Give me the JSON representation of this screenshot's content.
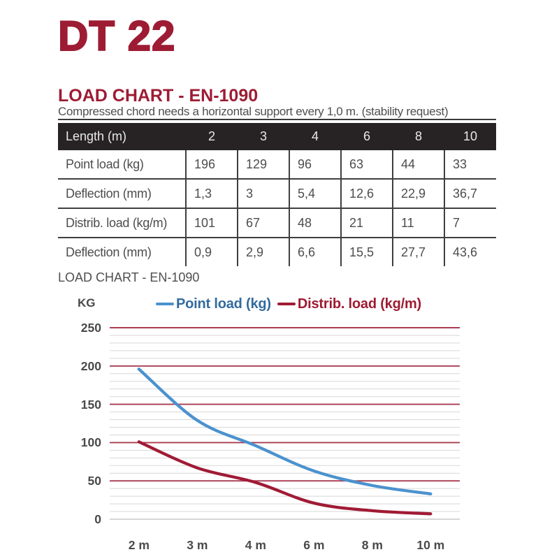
{
  "page": {
    "product_title": "DT 22",
    "section": {
      "heading": "LOAD CHART - EN-1090",
      "subtitle": "Compressed chord needs a horizontal support every 1,0 m. (stability request)"
    }
  },
  "table": {
    "header": {
      "label": "Length (m)",
      "columns": [
        "2",
        "3",
        "4",
        "6",
        "8",
        "10"
      ]
    },
    "rows": [
      {
        "label": "Point load (kg)",
        "values": [
          "196",
          "129",
          "96",
          "63",
          "44",
          "33"
        ]
      },
      {
        "label": "Deflection (mm)",
        "values": [
          "1,3",
          "3",
          "5,4",
          "12,6",
          "22,9",
          "36,7"
        ]
      },
      {
        "label": "Distrib. load (kg/m)",
        "values": [
          "101",
          "67",
          "48",
          "21",
          "11",
          "7"
        ]
      },
      {
        "label": "Deflection (mm)",
        "values": [
          "0,9",
          "2,9",
          "6,6",
          "15,5",
          "27,7",
          "43,6"
        ]
      }
    ]
  },
  "chart": {
    "title": "LOAD CHART - EN-1090",
    "y_axis_label": "KG",
    "legend": [
      {
        "label": "Point load (kg)",
        "color": "#4b92ce",
        "text_color": "#336a9e"
      },
      {
        "label": "Distrib. load (kg/m)",
        "color": "#a01b35",
        "text_color": "#9e1b32"
      }
    ]
  },
  "chart_data": {
    "type": "line",
    "title": "LOAD CHART - EN-1090",
    "ylabel": "KG",
    "xlabel": "",
    "categories": [
      "2 m",
      "3 m",
      "4 m",
      "6 m",
      "8 m",
      "10 m"
    ],
    "series": [
      {
        "name": "Point load (kg)",
        "values": [
          196,
          129,
          96,
          63,
          44,
          33
        ],
        "color": "#4b92ce"
      },
      {
        "name": "Distrib. load (kg/m)",
        "values": [
          101,
          67,
          48,
          21,
          11,
          7
        ],
        "color": "#a01b35"
      }
    ],
    "ylim": [
      0,
      250
    ],
    "y_ticks": [
      0,
      50,
      100,
      150,
      200,
      250
    ],
    "minor_grid_step": 10,
    "grid": true,
    "legend_position": "top",
    "style": "smooth",
    "colors": {
      "major_grid": "#aa3b51",
      "minor_grid": "#d7d7d7",
      "zero_line": "#c8c8c8"
    }
  }
}
